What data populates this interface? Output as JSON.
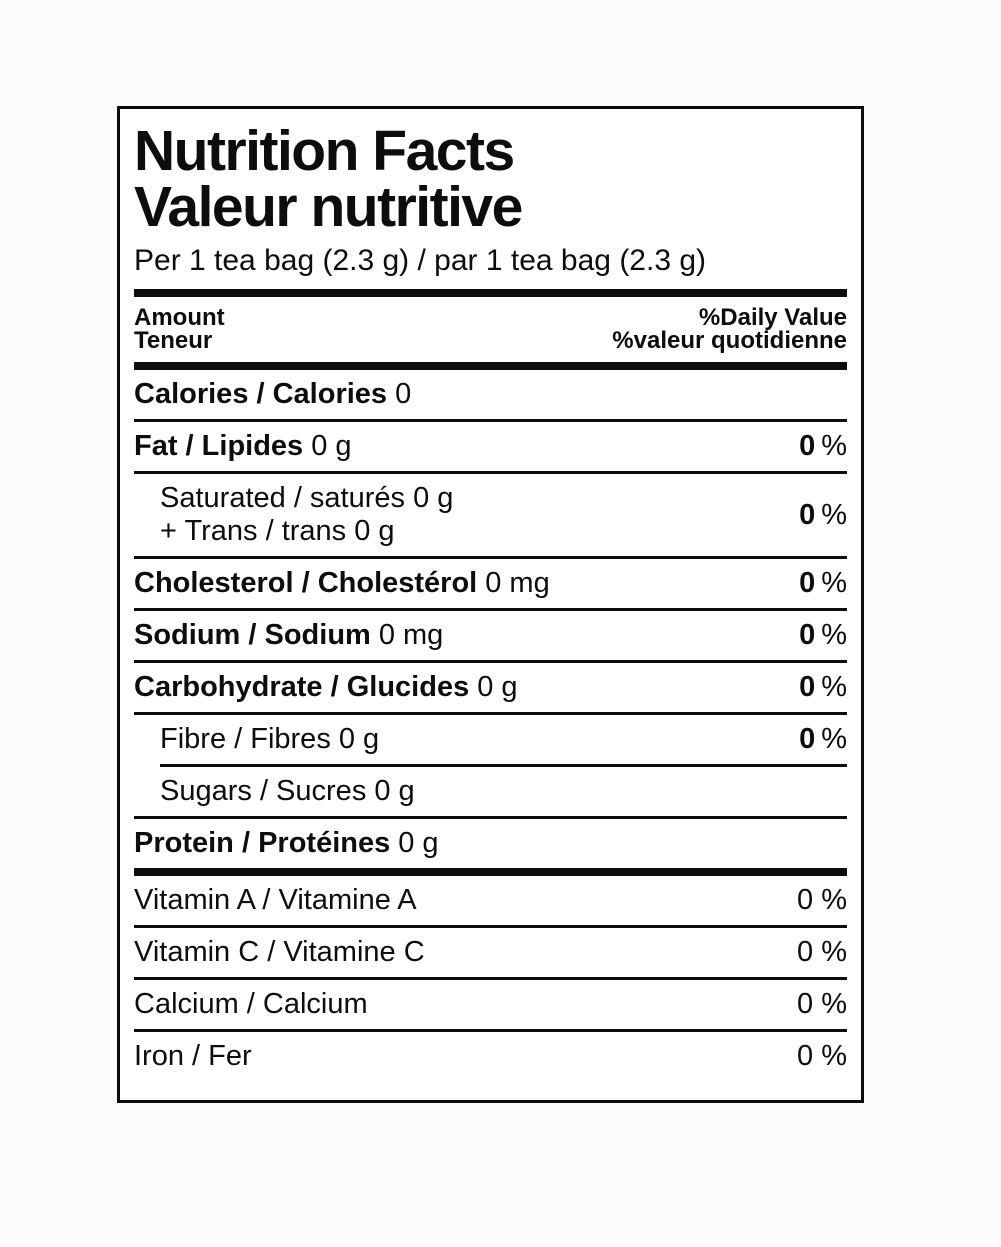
{
  "label": {
    "title_en": "Nutrition Facts",
    "title_fr": "Valeur nutritive",
    "serving": "Per 1 tea bag (2.3 g) / par 1 tea bag (2.3 g)",
    "header": {
      "amount_en": "Amount",
      "amount_fr": "Teneur",
      "dv_en": "%Daily Value",
      "dv_fr": "%valeur quotidienne"
    },
    "rows": {
      "calories": {
        "bold": "Calories / Calories",
        "rest": "0"
      },
      "fat": {
        "bold": "Fat / Lipides",
        "rest": "0 g",
        "dv": "0",
        "dv_unit": "%"
      },
      "sat_trans": {
        "line1": "Saturated / saturés 0 g",
        "line2": "+ Trans / trans 0 g",
        "dv": "0",
        "dv_unit": "%"
      },
      "cholesterol": {
        "bold": "Cholesterol / Cholestérol",
        "rest": "0 mg",
        "dv": "0",
        "dv_unit": "%"
      },
      "sodium": {
        "bold": "Sodium / Sodium",
        "rest": "0 mg",
        "dv": "0",
        "dv_unit": "%"
      },
      "carbohydrate": {
        "bold": "Carbohydrate / Glucides",
        "rest": "0 g",
        "dv": "0",
        "dv_unit": "%"
      },
      "fibre": {
        "text": "Fibre / Fibres 0 g",
        "dv": "0",
        "dv_unit": "%"
      },
      "sugars": {
        "text": "Sugars / Sucres 0 g"
      },
      "protein": {
        "bold": "Protein / Protéines",
        "rest": "0 g"
      },
      "vitamin_a": {
        "text": "Vitamin A / Vitamine A",
        "dv": "0 %"
      },
      "vitamin_c": {
        "text": "Vitamin C / Vitamine C",
        "dv": "0 %"
      },
      "calcium": {
        "text": "Calcium / Calcium",
        "dv": "0 %"
      },
      "iron": {
        "text": "Iron / Fer",
        "dv": "0 %"
      }
    },
    "colors": {
      "text": "#0d0d0d",
      "rule": "#0c0c0c",
      "background": "#ffffff",
      "page_background": "#fbfbfb"
    }
  }
}
